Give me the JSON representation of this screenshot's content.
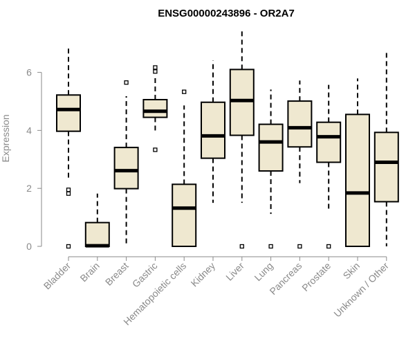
{
  "chart_data": {
    "type": "boxplot",
    "title": "ENSG00000243896 - OR2A7",
    "xlabel": "",
    "ylabel": "Expression",
    "ylim": [
      0,
      7.6
    ],
    "yticks": [
      0,
      2,
      4,
      6
    ],
    "box_color": "#efe8d0",
    "categories": [
      "Bladder",
      "Brain",
      "Breast",
      "Gastric",
      "Hematopoietic cells",
      "Kidney",
      "Liver",
      "Lung",
      "Pancreas",
      "Prostate",
      "Skin",
      "Unknown / Other"
    ],
    "boxes": [
      {
        "name": "Bladder",
        "whisker_low": 2.35,
        "q1": 3.97,
        "median": 4.72,
        "q3": 5.22,
        "whisker_high": 6.85,
        "outliers": [
          0,
          1.82,
          1.95
        ]
      },
      {
        "name": "Brain",
        "whisker_low": 0,
        "q1": 0,
        "median": 0.02,
        "q3": 0.82,
        "whisker_high": 1.82,
        "outliers": []
      },
      {
        "name": "Breast",
        "whisker_low": 0,
        "q1": 1.99,
        "median": 2.61,
        "q3": 3.41,
        "whisker_high": 5.18,
        "outliers": [
          5.65
        ]
      },
      {
        "name": "Gastric",
        "whisker_low": 3.97,
        "q1": 4.45,
        "median": 4.66,
        "q3": 5.06,
        "whisker_high": 5.88,
        "outliers": [
          3.33,
          6.03,
          6.17
        ]
      },
      {
        "name": "Hematopoietic cells",
        "whisker_low": 0,
        "q1": 0,
        "median": 1.32,
        "q3": 2.14,
        "whisker_high": 4.86,
        "outliers": [
          5.33
        ]
      },
      {
        "name": "Kidney",
        "whisker_low": 1.5,
        "q1": 3.04,
        "median": 3.81,
        "q3": 4.97,
        "whisker_high": 6.41,
        "outliers": []
      },
      {
        "name": "Liver",
        "whisker_low": 1.5,
        "q1": 3.83,
        "median": 5.03,
        "q3": 6.1,
        "whisker_high": 7.5,
        "outliers": [
          0
        ]
      },
      {
        "name": "Lung",
        "whisker_low": 1.12,
        "q1": 2.6,
        "median": 3.6,
        "q3": 4.21,
        "whisker_high": 5.41,
        "outliers": [
          0
        ]
      },
      {
        "name": "Pancreas",
        "whisker_low": 2.18,
        "q1": 3.43,
        "median": 4.09,
        "q3": 5.01,
        "whisker_high": 5.72,
        "outliers": [
          0
        ]
      },
      {
        "name": "Prostate",
        "whisker_low": 1.26,
        "q1": 2.9,
        "median": 3.78,
        "q3": 4.28,
        "whisker_high": 5.57,
        "outliers": [
          0
        ]
      },
      {
        "name": "Skin",
        "whisker_low": 0,
        "q1": 0,
        "median": 1.84,
        "q3": 4.55,
        "whisker_high": 5.79,
        "outliers": []
      },
      {
        "name": "Unknown / Other",
        "whisker_low": 0,
        "q1": 1.54,
        "median": 2.9,
        "q3": 3.93,
        "whisker_high": 6.67,
        "outliers": []
      }
    ]
  }
}
